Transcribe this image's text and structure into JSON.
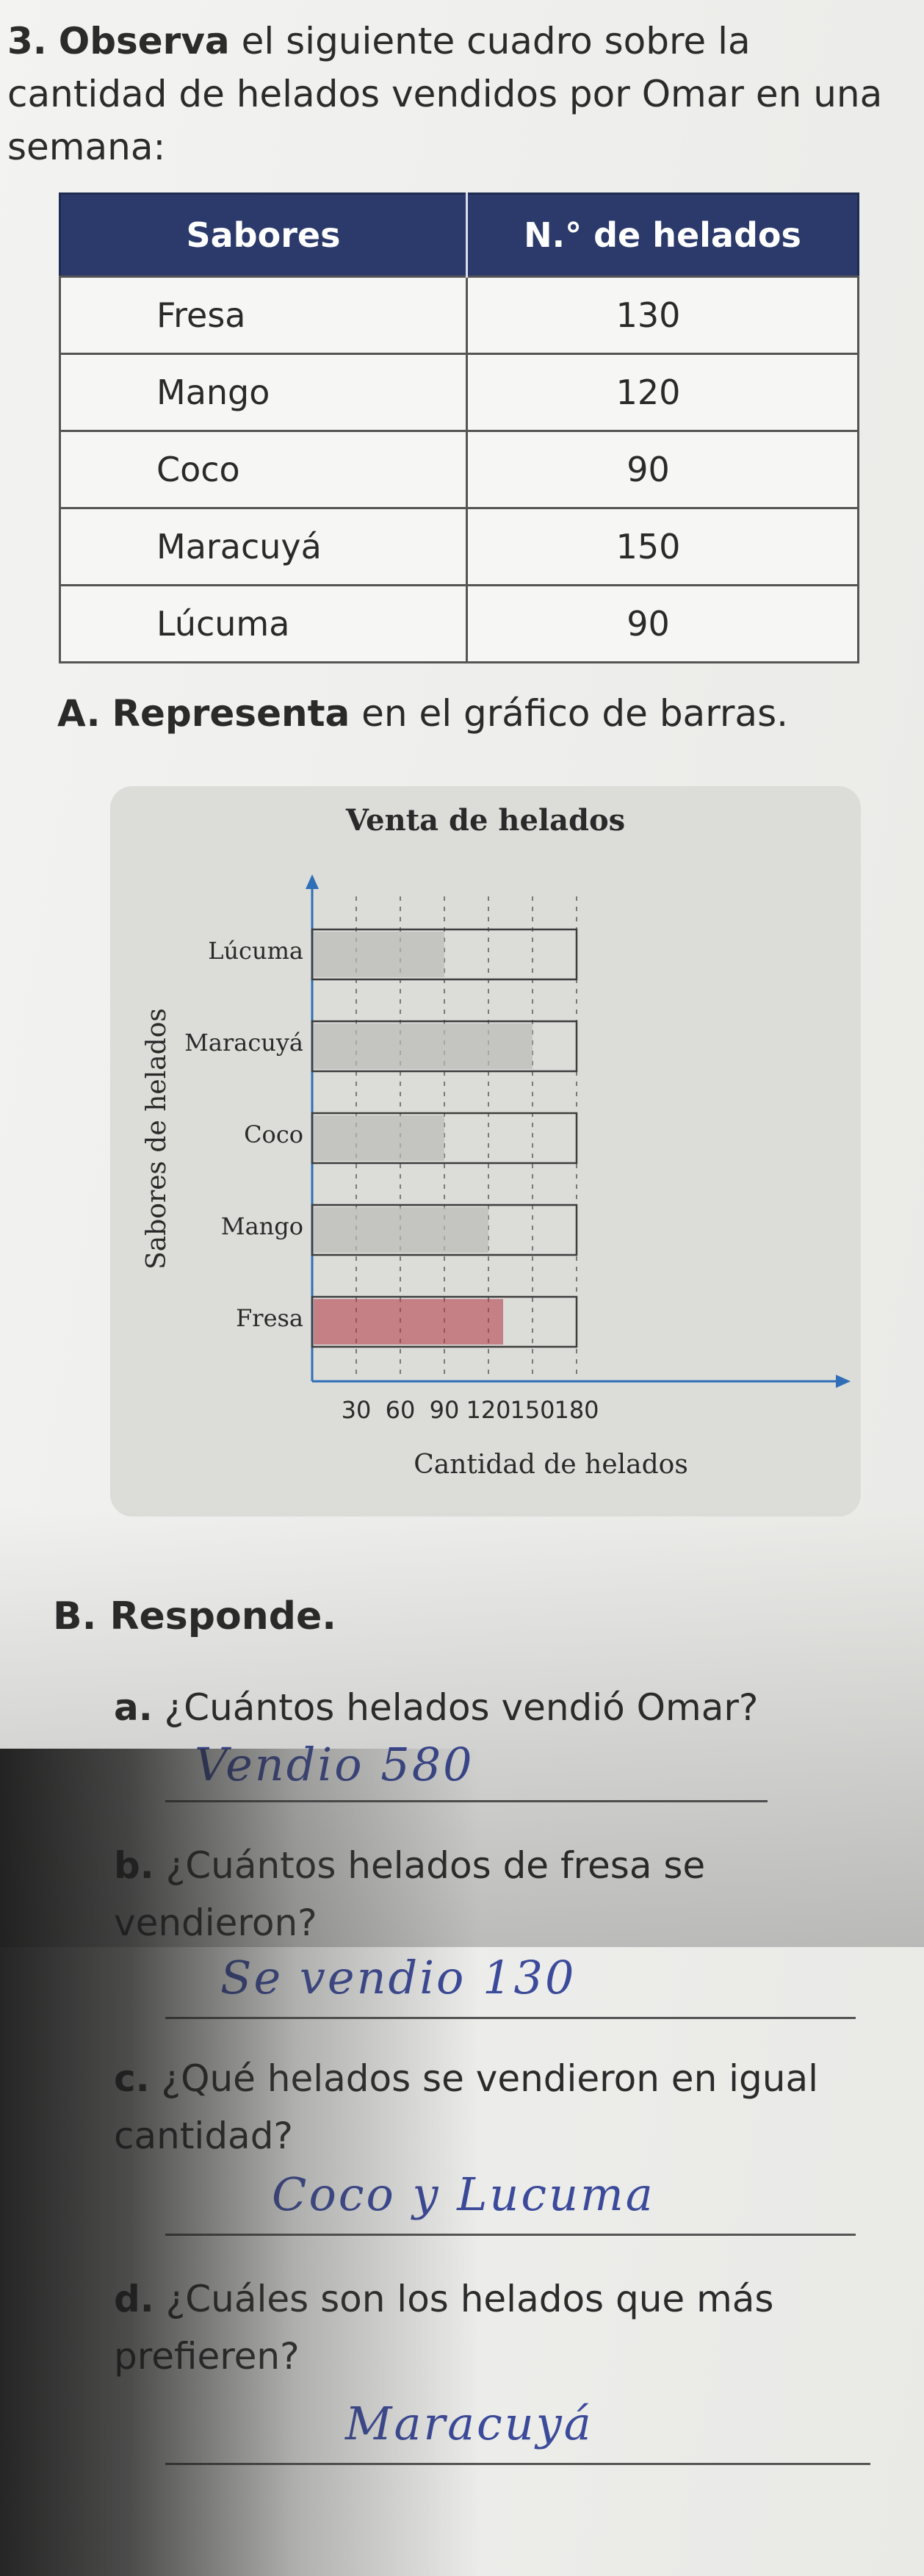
{
  "question": {
    "number": "3.",
    "verb": "Observa",
    "text": "el siguiente cuadro sobre la cantidad de helados vendidos por Omar en una semana:"
  },
  "table": {
    "headers": [
      "Sabores",
      "N.° de helados"
    ],
    "rows": [
      {
        "flavor": "Fresa",
        "count": "130"
      },
      {
        "flavor": "Mango",
        "count": "120"
      },
      {
        "flavor": "Coco",
        "count": "90"
      },
      {
        "flavor": "Maracuyá",
        "count": "150"
      },
      {
        "flavor": "Lúcuma",
        "count": "90"
      }
    ]
  },
  "section_a": {
    "letter": "A.",
    "verb": "Representa",
    "text": "en el gráfico de barras."
  },
  "chart_data": {
    "type": "bar",
    "orientation": "horizontal",
    "title": "Venta de helados",
    "xlabel": "Cantidad de helados",
    "ylabel": "Sabores de helados",
    "categories": [
      "Lúcuma",
      "Maracuyá",
      "Coco",
      "Mango",
      "Fresa"
    ],
    "x_ticks": [
      "30",
      "60",
      "90",
      "120",
      "150",
      "180"
    ],
    "xlim": [
      0,
      180
    ],
    "values": [
      90,
      150,
      90,
      120,
      130
    ],
    "colors": {
      "pencil": "#b9b9b6",
      "red": "#b0353f",
      "frame": "#3d3d3d",
      "axis": "#2f6fb8"
    }
  },
  "section_b": {
    "letter": "B.",
    "text": "Responde."
  },
  "questions": [
    {
      "letter": "a.",
      "text": "¿Cuántos helados vendió Omar?",
      "answer": "Vendio 580"
    },
    {
      "letter": "b.",
      "text": "¿Cuántos helados de fresa se vendieron?",
      "answer": "Se vendio 130"
    },
    {
      "letter": "c.",
      "text": "¿Qué helados se vendieron en igual cantidad?",
      "answer": "Coco y Lucuma"
    },
    {
      "letter": "d.",
      "text": "¿Cuáles son los helados que más prefieren?",
      "answer": "Maracuyá"
    }
  ]
}
